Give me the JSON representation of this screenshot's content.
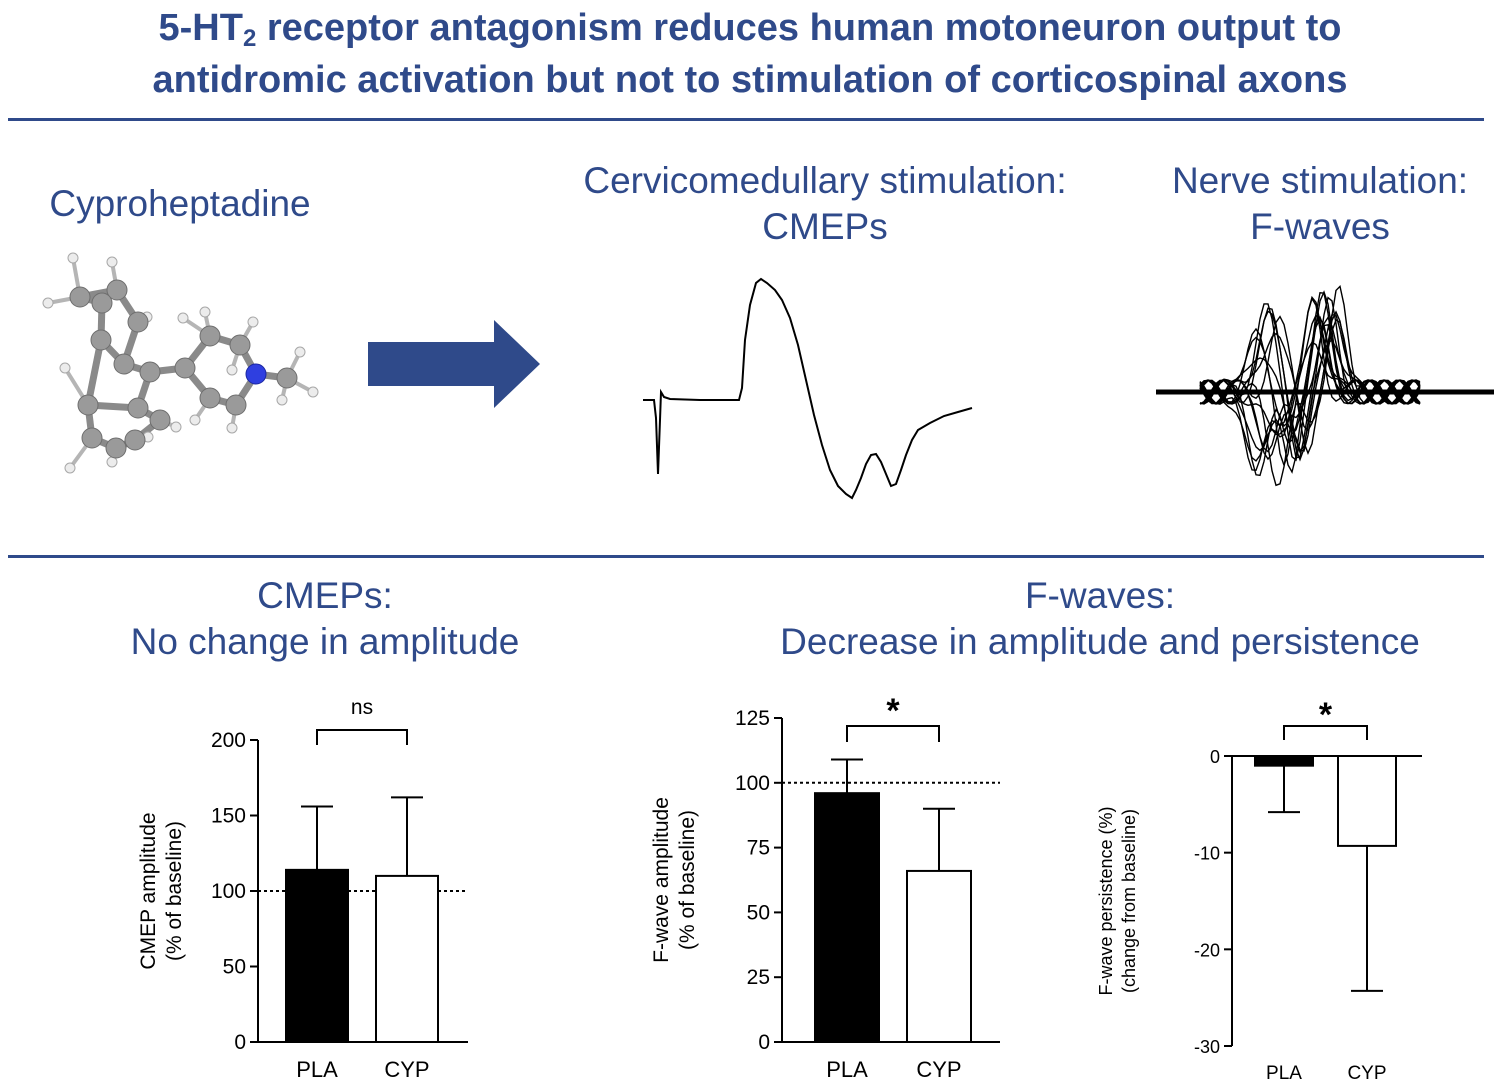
{
  "title": {
    "line1_pre": "5-HT",
    "line1_sub": "2",
    "line1_post": " receptor antagonism reduces human motoneuron output to",
    "line2": "antidromic activation but not to stimulation of corticospinal axons"
  },
  "top_panel": {
    "drug_label": "Cyproheptadine",
    "cmep_heading_line1": "Cervicomedullary stimulation:",
    "cmep_heading_line2": "CMEPs",
    "fwave_heading_line1": "Nerve stimulation:",
    "fwave_heading_line2": "F-waves"
  },
  "bottom_panel": {
    "cmep_heading_line1": "CMEPs:",
    "cmep_heading_line2": "No change in amplitude",
    "fwave_heading_line1": "F-waves:",
    "fwave_heading_line2": "Decrease in amplitude and persistence"
  },
  "colors": {
    "accent": "#2f4a8a",
    "bar_pla": "#000000",
    "bar_cyp": "#ffffff",
    "atom_carbon": "#9a9a9a",
    "atom_nitrogen": "#2f3fe0"
  },
  "chart_data": [
    {
      "type": "bar",
      "categories": [
        "PLA",
        "CYP"
      ],
      "values": [
        114,
        110
      ],
      "error_upper": [
        156,
        162
      ],
      "ylabel_line1": "CMEP amplitude",
      "ylabel_line2": "(% of baseline)",
      "ylim": [
        0,
        200
      ],
      "yticks": [
        "0",
        "50",
        "100",
        "150",
        "200"
      ],
      "reference_line": 100,
      "significance": "ns"
    },
    {
      "type": "bar",
      "categories": [
        "PLA",
        "CYP"
      ],
      "values": [
        96,
        66
      ],
      "error_upper": [
        109,
        90
      ],
      "ylabel_line1": "F-wave amplitude",
      "ylabel_line2": "(% of baseline)",
      "ylim": [
        0,
        125
      ],
      "yticks": [
        "0",
        "25",
        "50",
        "75",
        "100",
        "125"
      ],
      "reference_line": 100,
      "significance": "*"
    },
    {
      "type": "bar",
      "categories": [
        "PLA",
        "CYP"
      ],
      "values": [
        -1,
        -9.3
      ],
      "error_lower": [
        -5.8,
        -24.3
      ],
      "ylabel_line1": "F-wave persistence (%)",
      "ylabel_line2": "(change from baseline)",
      "ylim": [
        -30,
        0
      ],
      "yticks": [
        "0",
        "-10",
        "-20",
        "-30"
      ],
      "significance": "*"
    }
  ]
}
